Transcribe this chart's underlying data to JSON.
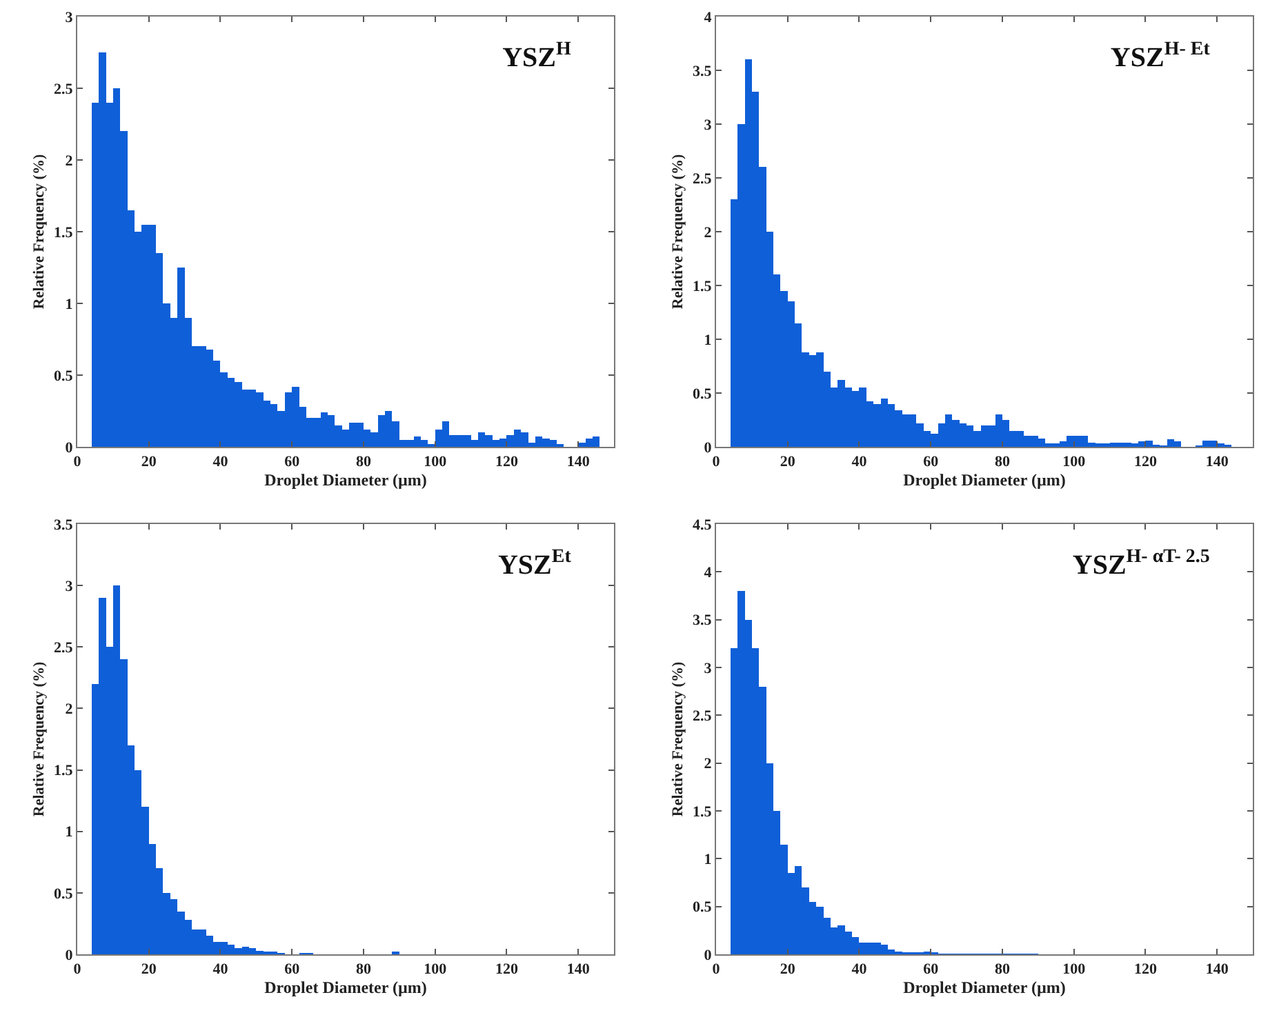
{
  "chart_data": [
    {
      "type": "histogram",
      "title": "YSZ$^{H}$",
      "xlabel": "Droplet Diameter (µm)",
      "ylabel": "Relative Frequency (%)",
      "color": "#0f5fd8",
      "grid": false,
      "xlim": [
        0,
        150
      ],
      "xticks": [
        0,
        20,
        40,
        60,
        80,
        100,
        120,
        140
      ],
      "ylim": [
        0,
        3
      ],
      "yticks": [
        0,
        0.5,
        1,
        1.5,
        2,
        2.5,
        3
      ],
      "bins": [
        4,
        6,
        8,
        10,
        12,
        14,
        16,
        18,
        20,
        22,
        24,
        26,
        28,
        30,
        32,
        34,
        36,
        38,
        40,
        42,
        44,
        46,
        48,
        50,
        52,
        54,
        56,
        58,
        60,
        62,
        64,
        66,
        68,
        70,
        72,
        74,
        76,
        78,
        80,
        82,
        84,
        86,
        88,
        90,
        92,
        94,
        96,
        98,
        100,
        102,
        104,
        106,
        108,
        110,
        112,
        114,
        116,
        118,
        120,
        122,
        124,
        126,
        128,
        130,
        132,
        134,
        136,
        138,
        140,
        142,
        144,
        146
      ],
      "values": [
        2.4,
        2.75,
        2.4,
        2.5,
        2.2,
        1.65,
        1.5,
        1.55,
        1.55,
        1.35,
        1.0,
        0.9,
        1.25,
        0.9,
        0.7,
        0.7,
        0.68,
        0.6,
        0.52,
        0.48,
        0.45,
        0.4,
        0.4,
        0.38,
        0.32,
        0.3,
        0.25,
        0.38,
        0.42,
        0.28,
        0.2,
        0.2,
        0.24,
        0.22,
        0.15,
        0.12,
        0.17,
        0.17,
        0.12,
        0.1,
        0.22,
        0.25,
        0.18,
        0.05,
        0.05,
        0.07,
        0.05,
        0.02,
        0.12,
        0.18,
        0.08,
        0.08,
        0.08,
        0.05,
        0.1,
        0.08,
        0.05,
        0.06,
        0.08,
        0.12,
        0.1,
        0.03,
        0.07,
        0.06,
        0.05,
        0.02,
        0,
        0,
        0.03,
        0.06,
        0.07
      ]
    },
    {
      "type": "histogram",
      "title": "YSZ$^{H- Et}$",
      "xlabel": "Droplet Diameter (µm)",
      "ylabel": "Relative Frequency (%)",
      "color": "#0f5fd8",
      "grid": false,
      "xlim": [
        0,
        150
      ],
      "xticks": [
        0,
        20,
        40,
        60,
        80,
        100,
        120,
        140
      ],
      "ylim": [
        0,
        4
      ],
      "yticks": [
        0,
        0.5,
        1,
        1.5,
        2,
        2.5,
        3,
        3.5,
        4
      ],
      "bins": [
        4,
        6,
        8,
        10,
        12,
        14,
        16,
        18,
        20,
        22,
        24,
        26,
        28,
        30,
        32,
        34,
        36,
        38,
        40,
        42,
        44,
        46,
        48,
        50,
        52,
        54,
        56,
        58,
        60,
        62,
        64,
        66,
        68,
        70,
        72,
        74,
        76,
        78,
        80,
        82,
        84,
        86,
        88,
        90,
        92,
        94,
        96,
        98,
        100,
        102,
        104,
        106,
        108,
        110,
        112,
        114,
        116,
        118,
        120,
        122,
        124,
        126,
        128,
        130,
        132,
        134,
        136,
        138,
        140,
        142,
        144,
        146
      ],
      "values": [
        2.3,
        3.0,
        3.6,
        3.3,
        2.6,
        2.0,
        1.6,
        1.45,
        1.35,
        1.15,
        0.88,
        0.85,
        0.88,
        0.7,
        0.55,
        0.62,
        0.55,
        0.52,
        0.55,
        0.42,
        0.4,
        0.45,
        0.4,
        0.34,
        0.3,
        0.3,
        0.22,
        0.15,
        0.12,
        0.22,
        0.3,
        0.25,
        0.22,
        0.2,
        0.15,
        0.2,
        0.2,
        0.3,
        0.25,
        0.15,
        0.15,
        0.1,
        0.1,
        0.08,
        0.03,
        0.03,
        0.05,
        0.1,
        0.1,
        0.1,
        0.04,
        0.03,
        0.03,
        0.04,
        0.04,
        0.04,
        0.03,
        0.05,
        0.06,
        0.02,
        0.01,
        0.07,
        0.05,
        0,
        0,
        0.01,
        0.06,
        0.06,
        0.03,
        0.02,
        0
      ]
    },
    {
      "type": "histogram",
      "title": "YSZ$^{Et}$",
      "xlabel": "Droplet Diameter (µm)",
      "ylabel": "Relative Frequency (%)",
      "color": "#0f5fd8",
      "grid": false,
      "xlim": [
        0,
        150
      ],
      "xticks": [
        0,
        20,
        40,
        60,
        80,
        100,
        120,
        140
      ],
      "ylim": [
        0,
        3.5
      ],
      "yticks": [
        0,
        0.5,
        1,
        1.5,
        2,
        2.5,
        3,
        3.5
      ],
      "bins": [
        4,
        6,
        8,
        10,
        12,
        14,
        16,
        18,
        20,
        22,
        24,
        26,
        28,
        30,
        32,
        34,
        36,
        38,
        40,
        42,
        44,
        46,
        48,
        50,
        52,
        54,
        56,
        58,
        60,
        62,
        64,
        66,
        68,
        70,
        72,
        74,
        76,
        78,
        80,
        82,
        84,
        86,
        88,
        90,
        92,
        94,
        96,
        98,
        100,
        102,
        104,
        106,
        108,
        110,
        112,
        114,
        116,
        118,
        120,
        122,
        124,
        126,
        128,
        130,
        132,
        134,
        136,
        138,
        140,
        142,
        144,
        146
      ],
      "values": [
        2.2,
        2.9,
        2.5,
        3.0,
        2.4,
        1.7,
        1.5,
        1.2,
        0.9,
        0.7,
        0.5,
        0.45,
        0.35,
        0.28,
        0.2,
        0.2,
        0.15,
        0.1,
        0.1,
        0.08,
        0.05,
        0.06,
        0.05,
        0.03,
        0.02,
        0.02,
        0.01,
        0,
        0,
        0.01,
        0.01,
        0,
        0,
        0,
        0,
        0,
        0,
        0,
        0,
        0,
        0,
        0,
        0.02,
        0,
        0,
        0,
        0,
        0,
        0,
        0,
        0,
        0,
        0,
        0,
        0,
        0,
        0,
        0,
        0,
        0,
        0,
        0,
        0,
        0,
        0,
        0,
        0,
        0,
        0,
        0,
        0
      ]
    },
    {
      "type": "histogram",
      "title": "YSZ$^{H- αT- 2.5}$",
      "xlabel": "Droplet Diameter (µm)",
      "ylabel": "Relative Frequency (%)",
      "color": "#0f5fd8",
      "grid": false,
      "xlim": [
        0,
        150
      ],
      "xticks": [
        0,
        20,
        40,
        60,
        80,
        100,
        120,
        140
      ],
      "ylim": [
        0,
        4.5
      ],
      "yticks": [
        0,
        0.5,
        1,
        1.5,
        2,
        2.5,
        3,
        3.5,
        4,
        4.5
      ],
      "bins": [
        4,
        6,
        8,
        10,
        12,
        14,
        16,
        18,
        20,
        22,
        24,
        26,
        28,
        30,
        32,
        34,
        36,
        38,
        40,
        42,
        44,
        46,
        48,
        50,
        52,
        54,
        56,
        58,
        60,
        62,
        64,
        66,
        68,
        70,
        72,
        74,
        76,
        78,
        80,
        82,
        84,
        86,
        88,
        90,
        92,
        94,
        96,
        98,
        100,
        102,
        104,
        106,
        108,
        110,
        112,
        114,
        116,
        118,
        120,
        122,
        124,
        126,
        128,
        130,
        132,
        134,
        136,
        138,
        140,
        142,
        144,
        146
      ],
      "values": [
        3.2,
        3.8,
        3.5,
        3.2,
        2.8,
        2.0,
        1.5,
        1.15,
        0.85,
        0.92,
        0.7,
        0.55,
        0.5,
        0.38,
        0.28,
        0.3,
        0.24,
        0.18,
        0.12,
        0.12,
        0.12,
        0.1,
        0.05,
        0.03,
        0.02,
        0.02,
        0.02,
        0.03,
        0.02,
        0.01,
        0.01,
        0.01,
        0.01,
        0.01,
        0.01,
        0.01,
        0.01,
        0.01,
        0.01,
        0.01,
        0.01,
        0.01,
        0.01,
        0,
        0,
        0,
        0,
        0,
        0,
        0,
        0,
        0,
        0,
        0,
        0,
        0,
        0,
        0,
        0,
        0,
        0,
        0,
        0,
        0,
        0,
        0,
        0,
        0,
        0,
        0,
        0
      ]
    }
  ]
}
